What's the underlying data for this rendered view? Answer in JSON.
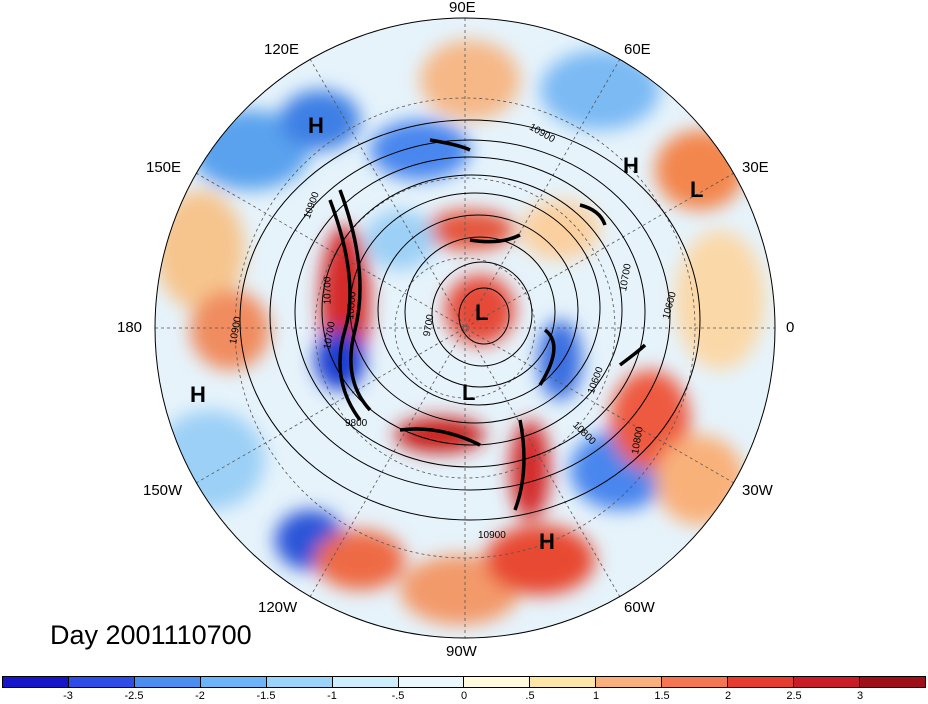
{
  "title": "Day 2001110700",
  "lon_labels": {
    "e90": "90E",
    "e60": "60E",
    "e30": "30E",
    "zero": "0",
    "w30": "30W",
    "w60": "60W",
    "w90": "90W",
    "w120": "120W",
    "w150": "150W",
    "d180": "180",
    "e150": "150E",
    "e120": "120E"
  },
  "pressure_centers": {
    "h1": "H",
    "h2": "H",
    "h3": "H",
    "h4": "H",
    "l1": "L",
    "l2": "L",
    "l3": "L"
  },
  "contour_labels": {
    "c1": "10900",
    "c2": "10900",
    "c3": "10900",
    "c4": "10700",
    "c5": "10700",
    "c6": "9700",
    "c7": "10600",
    "c8": "10600",
    "c9": "10800",
    "c10": "10800",
    "c11": "10900",
    "c12": "10700",
    "c13": "10800",
    "c14": "9800"
  },
  "colorbar": {
    "colors": [
      "#1616c8",
      "#2c4ee6",
      "#4a8ef2",
      "#6cb4f8",
      "#9ad4fb",
      "#cdeffd",
      "#eaf8fe",
      "#fffbdc",
      "#fde7a8",
      "#f9b07a",
      "#f37651",
      "#e63b2f",
      "#c81d26",
      "#9f0f1a"
    ],
    "labels": [
      "-3",
      "-2.5",
      "-2",
      "-1.5",
      "-1",
      "-.5",
      "0",
      ".5",
      "1",
      "1.5",
      "2",
      "2.5",
      "3"
    ]
  }
}
